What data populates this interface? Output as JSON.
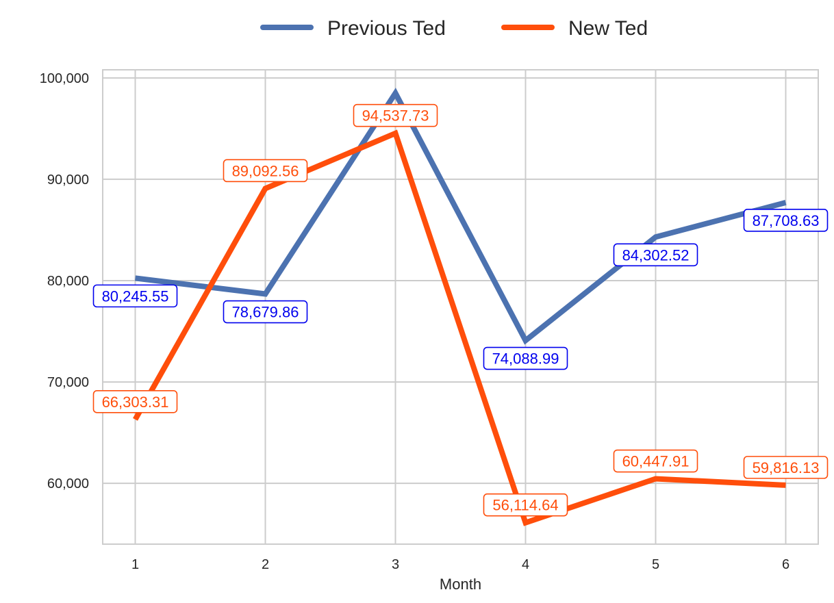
{
  "chart_data": {
    "type": "line",
    "title": "",
    "xlabel": "Month",
    "ylabel": "",
    "x": [
      1,
      2,
      3,
      4,
      5,
      6
    ],
    "x_tick_labels": [
      "1",
      "2",
      "3",
      "4",
      "5",
      "6"
    ],
    "y_ticks": [
      60000,
      70000,
      80000,
      90000,
      100000
    ],
    "y_tick_labels": [
      "60,000",
      "70,000",
      "80,000",
      "90,000",
      "100,000"
    ],
    "xlim": [
      0.75,
      6.25
    ],
    "ylim": [
      54000,
      100800
    ],
    "grid": true,
    "legend_position": "top-center",
    "series": [
      {
        "name": "Previous Ted",
        "color": "#4c72b0",
        "label_color": "#0000ee",
        "label_placement": "below",
        "values": [
          80245.55,
          78679.86,
          98500,
          74088.99,
          84302.52,
          87708.63
        ],
        "labels": [
          "80,245.55",
          "78,679.86",
          "",
          "74,088.99",
          "84,302.52",
          "87,708.63"
        ]
      },
      {
        "name": "New Ted",
        "color": "#ff4e0b",
        "label_color": "#ff4e0b",
        "label_placement": "above",
        "values": [
          66303.31,
          89092.56,
          94537.73,
          56114.64,
          60447.91,
          59816.13
        ],
        "labels": [
          "66,303.31",
          "89,092.56",
          "94,537.73",
          "56,114.64",
          "60,447.91",
          "59,816.13"
        ]
      }
    ]
  }
}
